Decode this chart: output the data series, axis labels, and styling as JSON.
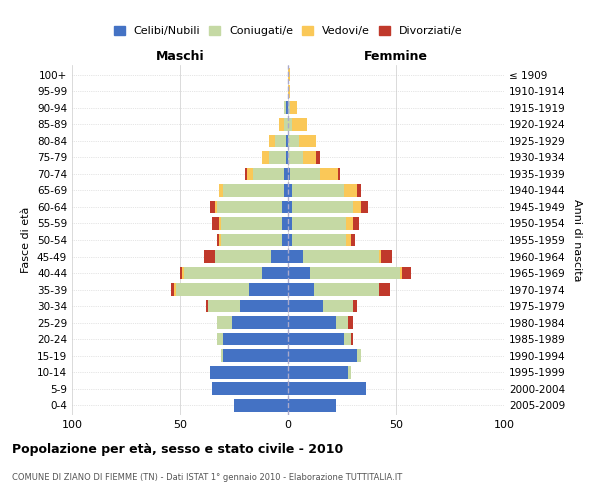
{
  "age_groups": [
    "0-4",
    "5-9",
    "10-14",
    "15-19",
    "20-24",
    "25-29",
    "30-34",
    "35-39",
    "40-44",
    "45-49",
    "50-54",
    "55-59",
    "60-64",
    "65-69",
    "70-74",
    "75-79",
    "80-84",
    "85-89",
    "90-94",
    "95-99",
    "100+"
  ],
  "birth_years": [
    "2005-2009",
    "2000-2004",
    "1995-1999",
    "1990-1994",
    "1985-1989",
    "1980-1984",
    "1975-1979",
    "1970-1974",
    "1965-1969",
    "1960-1964",
    "1955-1959",
    "1950-1954",
    "1945-1949",
    "1940-1944",
    "1935-1939",
    "1930-1934",
    "1925-1929",
    "1920-1924",
    "1915-1919",
    "1910-1914",
    "≤ 1909"
  ],
  "males": {
    "celibe": [
      25,
      35,
      36,
      30,
      30,
      26,
      22,
      18,
      12,
      8,
      3,
      3,
      3,
      2,
      2,
      1,
      1,
      0,
      1,
      0,
      0
    ],
    "coniugato": [
      0,
      0,
      0,
      1,
      3,
      7,
      15,
      34,
      36,
      26,
      28,
      28,
      30,
      28,
      14,
      8,
      5,
      2,
      1,
      0,
      0
    ],
    "vedovo": [
      0,
      0,
      0,
      0,
      0,
      0,
      0,
      1,
      1,
      0,
      1,
      1,
      1,
      2,
      3,
      3,
      3,
      2,
      0,
      0,
      0
    ],
    "divorziato": [
      0,
      0,
      0,
      0,
      0,
      0,
      1,
      1,
      1,
      5,
      1,
      3,
      2,
      0,
      1,
      0,
      0,
      0,
      0,
      0,
      0
    ]
  },
  "females": {
    "nubile": [
      22,
      36,
      28,
      32,
      26,
      22,
      16,
      12,
      10,
      7,
      2,
      2,
      2,
      2,
      1,
      0,
      0,
      0,
      0,
      0,
      0
    ],
    "coniugata": [
      0,
      0,
      1,
      2,
      3,
      6,
      14,
      30,
      42,
      35,
      25,
      25,
      28,
      24,
      14,
      7,
      5,
      2,
      1,
      0,
      0
    ],
    "vedova": [
      0,
      0,
      0,
      0,
      0,
      0,
      0,
      0,
      1,
      1,
      2,
      3,
      4,
      6,
      8,
      6,
      8,
      7,
      3,
      1,
      1
    ],
    "divorziata": [
      0,
      0,
      0,
      0,
      1,
      2,
      2,
      5,
      4,
      5,
      2,
      3,
      3,
      2,
      1,
      2,
      0,
      0,
      0,
      0,
      0
    ]
  },
  "colors": {
    "celibe": "#4472c4",
    "coniugato": "#c5d9a4",
    "vedovo": "#fac858",
    "divorziato": "#c0392b"
  },
  "title": "Popolazione per età, sesso e stato civile - 2010",
  "subtitle": "COMUNE DI ZIANO DI FIEMME (TN) - Dati ISTAT 1° gennaio 2010 - Elaborazione TUTTITALIA.IT",
  "xlabel_left": "Maschi",
  "xlabel_right": "Femmine",
  "ylabel_left": "Fasce di età",
  "ylabel_right": "Anni di nascita",
  "xlim": 100,
  "grid_color": "#cccccc",
  "legend_labels": [
    "Celibi/Nubili",
    "Coniugati/e",
    "Vedovi/e",
    "Divorziati/e"
  ]
}
